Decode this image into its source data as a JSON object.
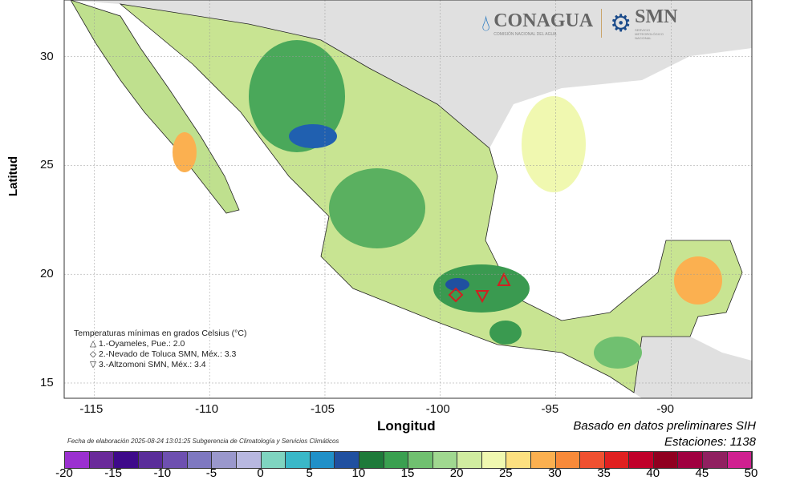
{
  "axes": {
    "xlabel": "Longitud",
    "ylabel": "Latitud",
    "xticks": [
      -115,
      -110,
      -105,
      -100,
      -95,
      -90
    ],
    "yticks": [
      30,
      25,
      20,
      15
    ],
    "xlim": [
      -116.3,
      -86.5
    ],
    "ylim": [
      14.3,
      32.6
    ]
  },
  "legend": {
    "title": "Temperaturas mínimas en grados Celsius (°C)",
    "items": [
      {
        "symbol": "△",
        "text": "1.-Oyameles, Pue.: 2.0"
      },
      {
        "symbol": "◇",
        "text": "2.-Nevado de Toluca SMN, Méx.: 3.3"
      },
      {
        "symbol": "▽",
        "text": "3.-Altzomoni SMN, Méx.: 3.4"
      }
    ]
  },
  "source": {
    "line1": "Basado en datos preliminares SIH",
    "line2": "Estaciones:  1138"
  },
  "fecha": "Fecha de elaboración 2025-08-24 13:01:25 Subgerencia de Climatología y Servicios Climáticos",
  "logos": {
    "conagua": "CONAGUA",
    "conagua_sub": "COMISIÓN NACIONAL DEL AGUA",
    "smn": "SMN",
    "smn_sub": "SERVICIO METEOROLÓGICO NACIONAL"
  },
  "colorbar": {
    "labels": [
      -20,
      -15,
      -10,
      -5,
      0,
      5,
      10,
      15,
      20,
      25,
      30,
      35,
      40,
      45,
      50
    ],
    "step": 2.5,
    "colors": [
      "#9b30d0",
      "#6a2a9a",
      "#3e0a8a",
      "#5a2d9a",
      "#6e50b0",
      "#7e78c0",
      "#9a98cc",
      "#b8b8e0",
      "#7fd4c0",
      "#3ab8c8",
      "#2090c8",
      "#2050a0",
      "#1e7a3a",
      "#3aa050",
      "#70c070",
      "#a0d890",
      "#d0eca0",
      "#f0f8b0",
      "#fde080",
      "#fbb050",
      "#f88a3a",
      "#f05030",
      "#e02020",
      "#c0002a",
      "#900020",
      "#a00040",
      "#902060",
      "#d02090"
    ]
  }
}
